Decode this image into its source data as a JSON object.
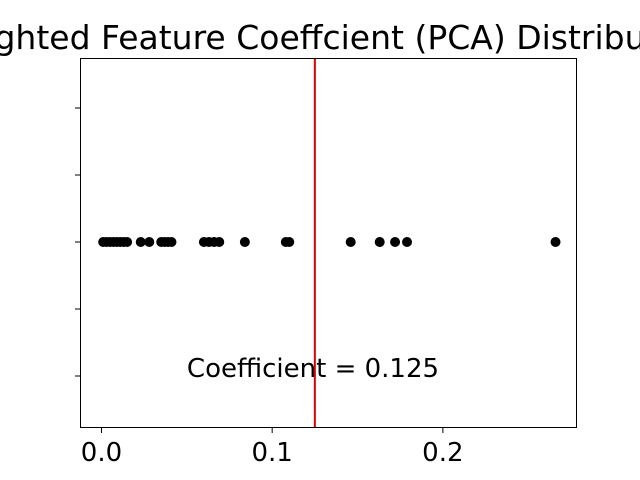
{
  "chart_data": {
    "type": "scatter",
    "title": "ghted Feature Coeffcient (PCA) Distribu",
    "xlabel": "",
    "ylabel": "",
    "xlim": [
      -0.012,
      0.278
    ],
    "x_ticks": [
      0.0,
      0.1,
      0.2
    ],
    "x_tick_labels": [
      "0.0",
      "0.1",
      "0.2"
    ],
    "y_tick_count": 5,
    "grid": false,
    "points": {
      "x": [
        0.001,
        0.003,
        0.005,
        0.007,
        0.009,
        0.011,
        0.013,
        0.015,
        0.023,
        0.028,
        0.035,
        0.037,
        0.039,
        0.041,
        0.06,
        0.063,
        0.066,
        0.069,
        0.084,
        0.108,
        0.11,
        0.146,
        0.163,
        0.172,
        0.179,
        0.266
      ],
      "color": "#000000"
    },
    "reference_line": {
      "x": 0.125,
      "color": "#dd0000"
    },
    "annotation": "Coefficient = 0.125"
  }
}
